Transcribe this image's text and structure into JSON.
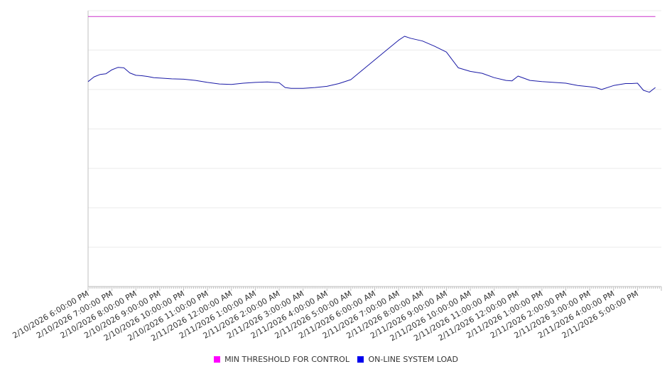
{
  "chart_data": {
    "type": "line",
    "title": "",
    "xlabel": "",
    "ylabel": "",
    "ylim": [
      0,
      70
    ],
    "grid": true,
    "legend_position": "bottom-center",
    "x_tick_labels": [
      "2/10/2026 6:00:00 PM",
      "2/10/2026 7:00:00 PM",
      "2/10/2026 8:00:00 PM",
      "2/10/2026 9:00:00 PM",
      "2/10/2026 10:00:00 PM",
      "2/10/2026 11:00:00 PM",
      "2/11/2026 12:00:00 AM",
      "2/11/2026 1:00:00 AM",
      "2/11/2026 2:00:00 AM",
      "2/11/2026 3:00:00 AM",
      "2/11/2026 4:00:00 AM",
      "2/11/2026 5:00:00 AM",
      "2/11/2026 6:00:00 AM",
      "2/11/2026 7:00:00 AM",
      "2/11/2026 8:00:00 AM",
      "2/11/2026 9:00:00 AM",
      "2/11/2026 10:00:00 AM",
      "2/11/2026 11:00:00 AM",
      "2/11/2026 12:00:00 PM",
      "2/11/2026 1:00:00 PM",
      "2/11/2026 2:00:00 PM",
      "2/11/2026 3:00:00 PM",
      "2/11/2026 4:00:00 PM",
      "2/11/2026 5:00:00 PM"
    ],
    "series": [
      {
        "name": "MIN THRESHOLD FOR CONTROL",
        "color": "#cc33cc",
        "x": [
          "2/10/2026 6:00:00 PM",
          "2/11/2026 5:45:00 PM"
        ],
        "values": [
          68.5,
          68.5
        ]
      },
      {
        "name": "ON-LINE SYSTEM LOAD",
        "color": "#1a1aa6",
        "x": [
          "2/10/2026 6:00:00 PM",
          "2/10/2026 6:15:00 PM",
          "2/10/2026 6:30:00 PM",
          "2/10/2026 6:45:00 PM",
          "2/10/2026 7:00:00 PM",
          "2/10/2026 7:15:00 PM",
          "2/10/2026 7:30:00 PM",
          "2/10/2026 7:45:00 PM",
          "2/10/2026 8:00:00 PM",
          "2/10/2026 8:15:00 PM",
          "2/10/2026 8:30:00 PM",
          "2/10/2026 8:45:00 PM",
          "2/10/2026 9:00:00 PM",
          "2/10/2026 9:30:00 PM",
          "2/10/2026 10:00:00 PM",
          "2/10/2026 10:30:00 PM",
          "2/10/2026 11:00:00 PM",
          "2/10/2026 11:30:00 PM",
          "2/11/2026 12:00:00 AM",
          "2/11/2026 12:30:00 AM",
          "2/11/2026 1:00:00 AM",
          "2/11/2026 1:30:00 AM",
          "2/11/2026 2:00:00 AM",
          "2/11/2026 2:15:00 AM",
          "2/11/2026 2:30:00 AM",
          "2/11/2026 3:00:00 AM",
          "2/11/2026 3:30:00 AM",
          "2/11/2026 4:00:00 AM",
          "2/11/2026 4:30:00 AM",
          "2/11/2026 5:00:00 AM",
          "2/11/2026 5:30:00 AM",
          "2/11/2026 6:00:00 AM",
          "2/11/2026 6:30:00 AM",
          "2/11/2026 7:00:00 AM",
          "2/11/2026 7:15:00 AM",
          "2/11/2026 7:30:00 AM",
          "2/11/2026 8:00:00 AM",
          "2/11/2026 8:30:00 AM",
          "2/11/2026 9:00:00 AM",
          "2/11/2026 9:30:00 AM",
          "2/11/2026 10:00:00 AM",
          "2/11/2026 10:30:00 AM",
          "2/11/2026 11:00:00 AM",
          "2/11/2026 11:30:00 AM",
          "2/11/2026 11:45:00 AM",
          "2/11/2026 12:00:00 PM",
          "2/11/2026 12:30:00 PM",
          "2/11/2026 1:00:00 PM",
          "2/11/2026 1:30:00 PM",
          "2/11/2026 2:00:00 PM",
          "2/11/2026 2:30:00 PM",
          "2/11/2026 3:00:00 PM",
          "2/11/2026 3:15:00 PM",
          "2/11/2026 3:30:00 PM",
          "2/11/2026 4:00:00 PM",
          "2/11/2026 4:30:00 PM",
          "2/11/2026 4:45:00 PM",
          "2/11/2026 5:00:00 PM",
          "2/11/2026 5:15:00 PM",
          "2/11/2026 5:30:00 PM",
          "2/11/2026 5:45:00 PM"
        ],
        "values": [
          52.0,
          53.2,
          53.8,
          54.0,
          55.0,
          55.6,
          55.5,
          54.2,
          53.6,
          53.5,
          53.3,
          53.0,
          52.9,
          52.7,
          52.6,
          52.3,
          51.8,
          51.4,
          51.3,
          51.6,
          51.8,
          51.9,
          51.7,
          50.5,
          50.3,
          50.3,
          50.5,
          50.8,
          51.5,
          52.5,
          55.0,
          57.5,
          60.0,
          62.5,
          63.5,
          63.0,
          62.3,
          61.0,
          59.5,
          55.5,
          54.6,
          54.1,
          53.0,
          52.3,
          52.2,
          53.4,
          52.3,
          52.0,
          51.8,
          51.6,
          51.0,
          50.7,
          50.5,
          50.0,
          51.0,
          51.5,
          51.5,
          51.6,
          49.8,
          49.3,
          50.5
        ]
      }
    ]
  }
}
